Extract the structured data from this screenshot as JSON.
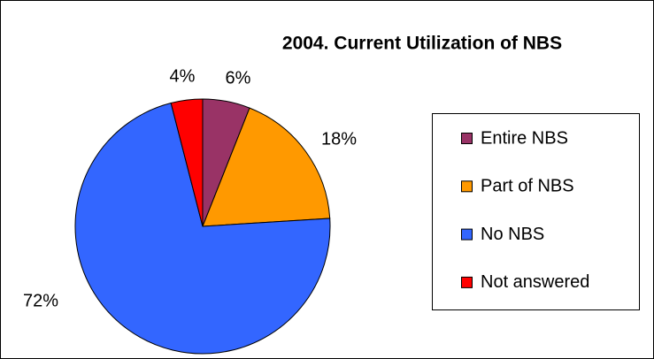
{
  "chart_data": {
    "type": "pie",
    "title": "2004. Current Utilization of NBS",
    "categories": [
      "Entire NBS",
      "Part of NBS",
      "No NBS",
      "Not answered"
    ],
    "values": [
      6,
      18,
      72,
      4
    ],
    "value_labels": [
      "6%",
      "18%",
      "72%",
      "4%"
    ],
    "colors": [
      "#993366",
      "#FF9900",
      "#3366FF",
      "#FF0000"
    ],
    "legend": "right"
  }
}
